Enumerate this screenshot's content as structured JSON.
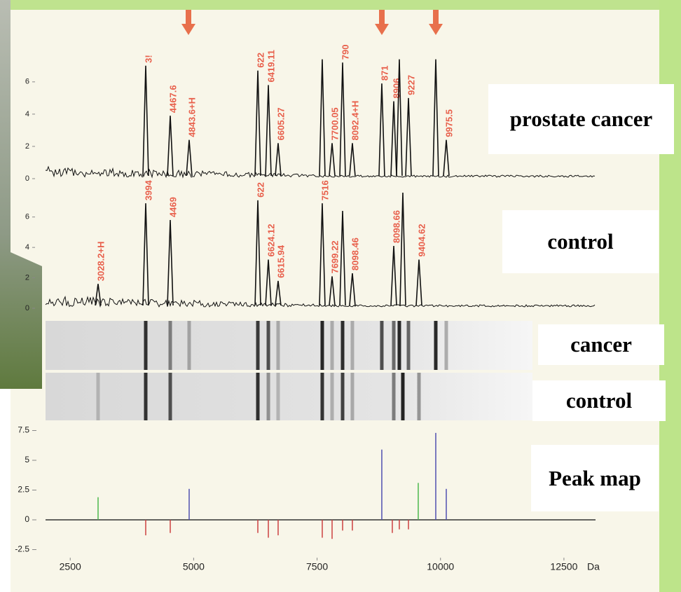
{
  "chart_data": [
    {
      "type": "spectrum",
      "label": "prostate cancer",
      "gel_label": "cancer",
      "xlim": [
        2000,
        13140
      ],
      "ylim": [
        0,
        7.6
      ],
      "yticks": [
        0,
        2,
        4,
        6
      ],
      "color": "#111111",
      "label_color": "#e8604c",
      "x": [
        4029,
        4526,
        4909,
        6300,
        6513,
        6711,
        7605,
        7804,
        8017,
        8215,
        8811,
        9053,
        9166,
        9351,
        9904,
        10117
      ],
      "values": [
        7.0,
        3.9,
        2.4,
        6.7,
        5.8,
        2.2,
        7.4,
        2.2,
        7.2,
        2.2,
        5.9,
        4.8,
        7.4,
        5.0,
        7.4,
        2.4
      ],
      "peak_labels": [
        "3!",
        "4467.6",
        "4843.6+H",
        "622",
        "6419.11",
        "6605.27",
        null,
        "7700.05",
        "790",
        "8092.4+H",
        "871",
        "8906",
        null,
        "9227",
        null,
        "9975.5"
      ]
    },
    {
      "type": "spectrum",
      "label": "control",
      "gel_label": "control",
      "xlim": [
        2000,
        13140
      ],
      "ylim": [
        0,
        7.6
      ],
      "yticks": [
        0,
        2,
        4,
        6
      ],
      "color": "#111111",
      "label_color": "#e8604c",
      "x": [
        3064,
        4029,
        4526,
        6300,
        6513,
        6711,
        7605,
        7804,
        8017,
        8215,
        9053,
        9237,
        9564
      ],
      "values": [
        1.6,
        6.9,
        5.8,
        7.1,
        3.2,
        1.8,
        6.9,
        2.1,
        6.4,
        2.3,
        4.1,
        7.6,
        3.2
      ],
      "peak_labels": [
        "3028.2+H",
        "3994",
        "4469",
        "622",
        "6624.12",
        "6615.94",
        "7516",
        "7699.22",
        null,
        "8098.46",
        "8098.66",
        null,
        "9404.62"
      ]
    },
    {
      "type": "peak_map",
      "label": "Peak map",
      "xlim": [
        2000,
        13140
      ],
      "xticks": [
        2500,
        5000,
        7500,
        10000,
        12500
      ],
      "x_unit": "Da",
      "ylim": [
        -3,
        8
      ],
      "yticks": [
        -2.5,
        0,
        2.5,
        5,
        7.5
      ],
      "x": [
        3064,
        4029,
        4526,
        4909,
        6300,
        6513,
        6711,
        7605,
        7804,
        8017,
        8215,
        8811,
        9024,
        9166,
        9351,
        9549,
        9904,
        10117
      ],
      "values": [
        1.9,
        -1.3,
        -1.1,
        2.6,
        -1.1,
        -1.5,
        -1.3,
        -1.5,
        -1.6,
        -0.9,
        -0.9,
        5.9,
        -1.1,
        -0.8,
        -0.8,
        3.1,
        7.3,
        2.6
      ],
      "colors": [
        "#4cb84c",
        "#cc4040",
        "#cc4040",
        "#5050b0",
        "#cc4040",
        "#cc4040",
        "#cc4040",
        "#cc4040",
        "#cc4040",
        "#cc4040",
        "#cc4040",
        "#5050b0",
        "#cc4040",
        "#cc4040",
        "#cc4040",
        "#4cb84c",
        "#5050b0",
        "#5050b0"
      ]
    }
  ]
}
